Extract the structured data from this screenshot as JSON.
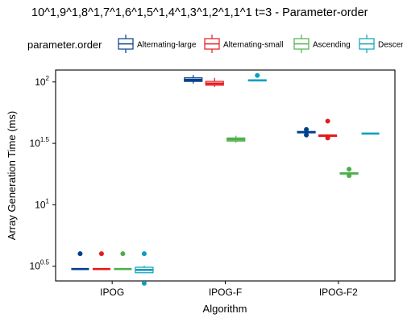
{
  "chart_data": {
    "type": "boxplot",
    "title": "10^1,9^1,8^1,7^1,6^1,5^1,4^1,3^1,2^1,1^1 t=3 - Parameter-order",
    "xlabel": "Algorithm",
    "ylabel": "Array Generation Time (ms)",
    "y_scale": "log10",
    "ylim": [
      2.4,
      125
    ],
    "y_ticks": [
      {
        "value": 3.1623,
        "base": "10",
        "exp": "0.5"
      },
      {
        "value": 10,
        "base": "10",
        "exp": "1"
      },
      {
        "value": 31.623,
        "base": "10",
        "exp": "1.5"
      },
      {
        "value": 100,
        "base": "10",
        "exp": "2"
      }
    ],
    "grid": false,
    "legend_placement": "top",
    "legend_title": "parameter.order",
    "categories": [
      "IPOG",
      "IPOG-F",
      "IPOG-F2"
    ],
    "series": [
      {
        "name": "Alternating-large",
        "color": "#003f8a",
        "boxes": [
          {
            "min": 3.0,
            "q1": 3.0,
            "median": 3.0,
            "q3": 3.0,
            "max": 3.0,
            "outliers": [
              4.0
            ]
          },
          {
            "min": 97,
            "q1": 101,
            "median": 104,
            "q3": 108,
            "max": 114,
            "outliers": []
          },
          {
            "min": 38,
            "q1": 38.5,
            "median": 39,
            "q3": 39.5,
            "max": 40,
            "outliers": [
              37,
              41
            ]
          }
        ]
      },
      {
        "name": "Alternating-small",
        "color": "#e41a1c",
        "boxes": [
          {
            "min": 3.0,
            "q1": 3.0,
            "median": 3.0,
            "q3": 3.0,
            "max": 3.0,
            "outliers": [
              4.0
            ]
          },
          {
            "min": 91,
            "q1": 94,
            "median": 97,
            "q3": 101,
            "max": 108,
            "outliers": []
          },
          {
            "min": 35.5,
            "q1": 36,
            "median": 36.5,
            "q3": 37,
            "max": 37.5,
            "outliers": [
              35,
              48
            ]
          }
        ]
      },
      {
        "name": "Ascending",
        "color": "#4daf4a",
        "boxes": [
          {
            "min": 3.0,
            "q1": 3.0,
            "median": 3.0,
            "q3": 3.0,
            "max": 3.0,
            "outliers": [
              4.0
            ]
          },
          {
            "min": 32,
            "q1": 33,
            "median": 34,
            "q3": 35,
            "max": 36.5,
            "outliers": []
          },
          {
            "min": 17.5,
            "q1": 17.8,
            "median": 18,
            "q3": 18.2,
            "max": 18.5,
            "outliers": [
              17.3,
              19.5
            ]
          }
        ]
      },
      {
        "name": "Descending",
        "color": "#0a9fbf",
        "boxes": [
          {
            "min": 2.8,
            "q1": 2.8,
            "median": 2.95,
            "q3": 3.1,
            "max": 3.2,
            "outliers": [
              4.0,
              2.3
            ]
          },
          {
            "min": 101,
            "q1": 102,
            "median": 103,
            "q3": 104,
            "max": 105,
            "outliers": [
              113
            ]
          },
          {
            "min": 38,
            "q1": 38,
            "median": 38,
            "q3": 38,
            "max": 38,
            "outliers": []
          }
        ]
      }
    ]
  }
}
